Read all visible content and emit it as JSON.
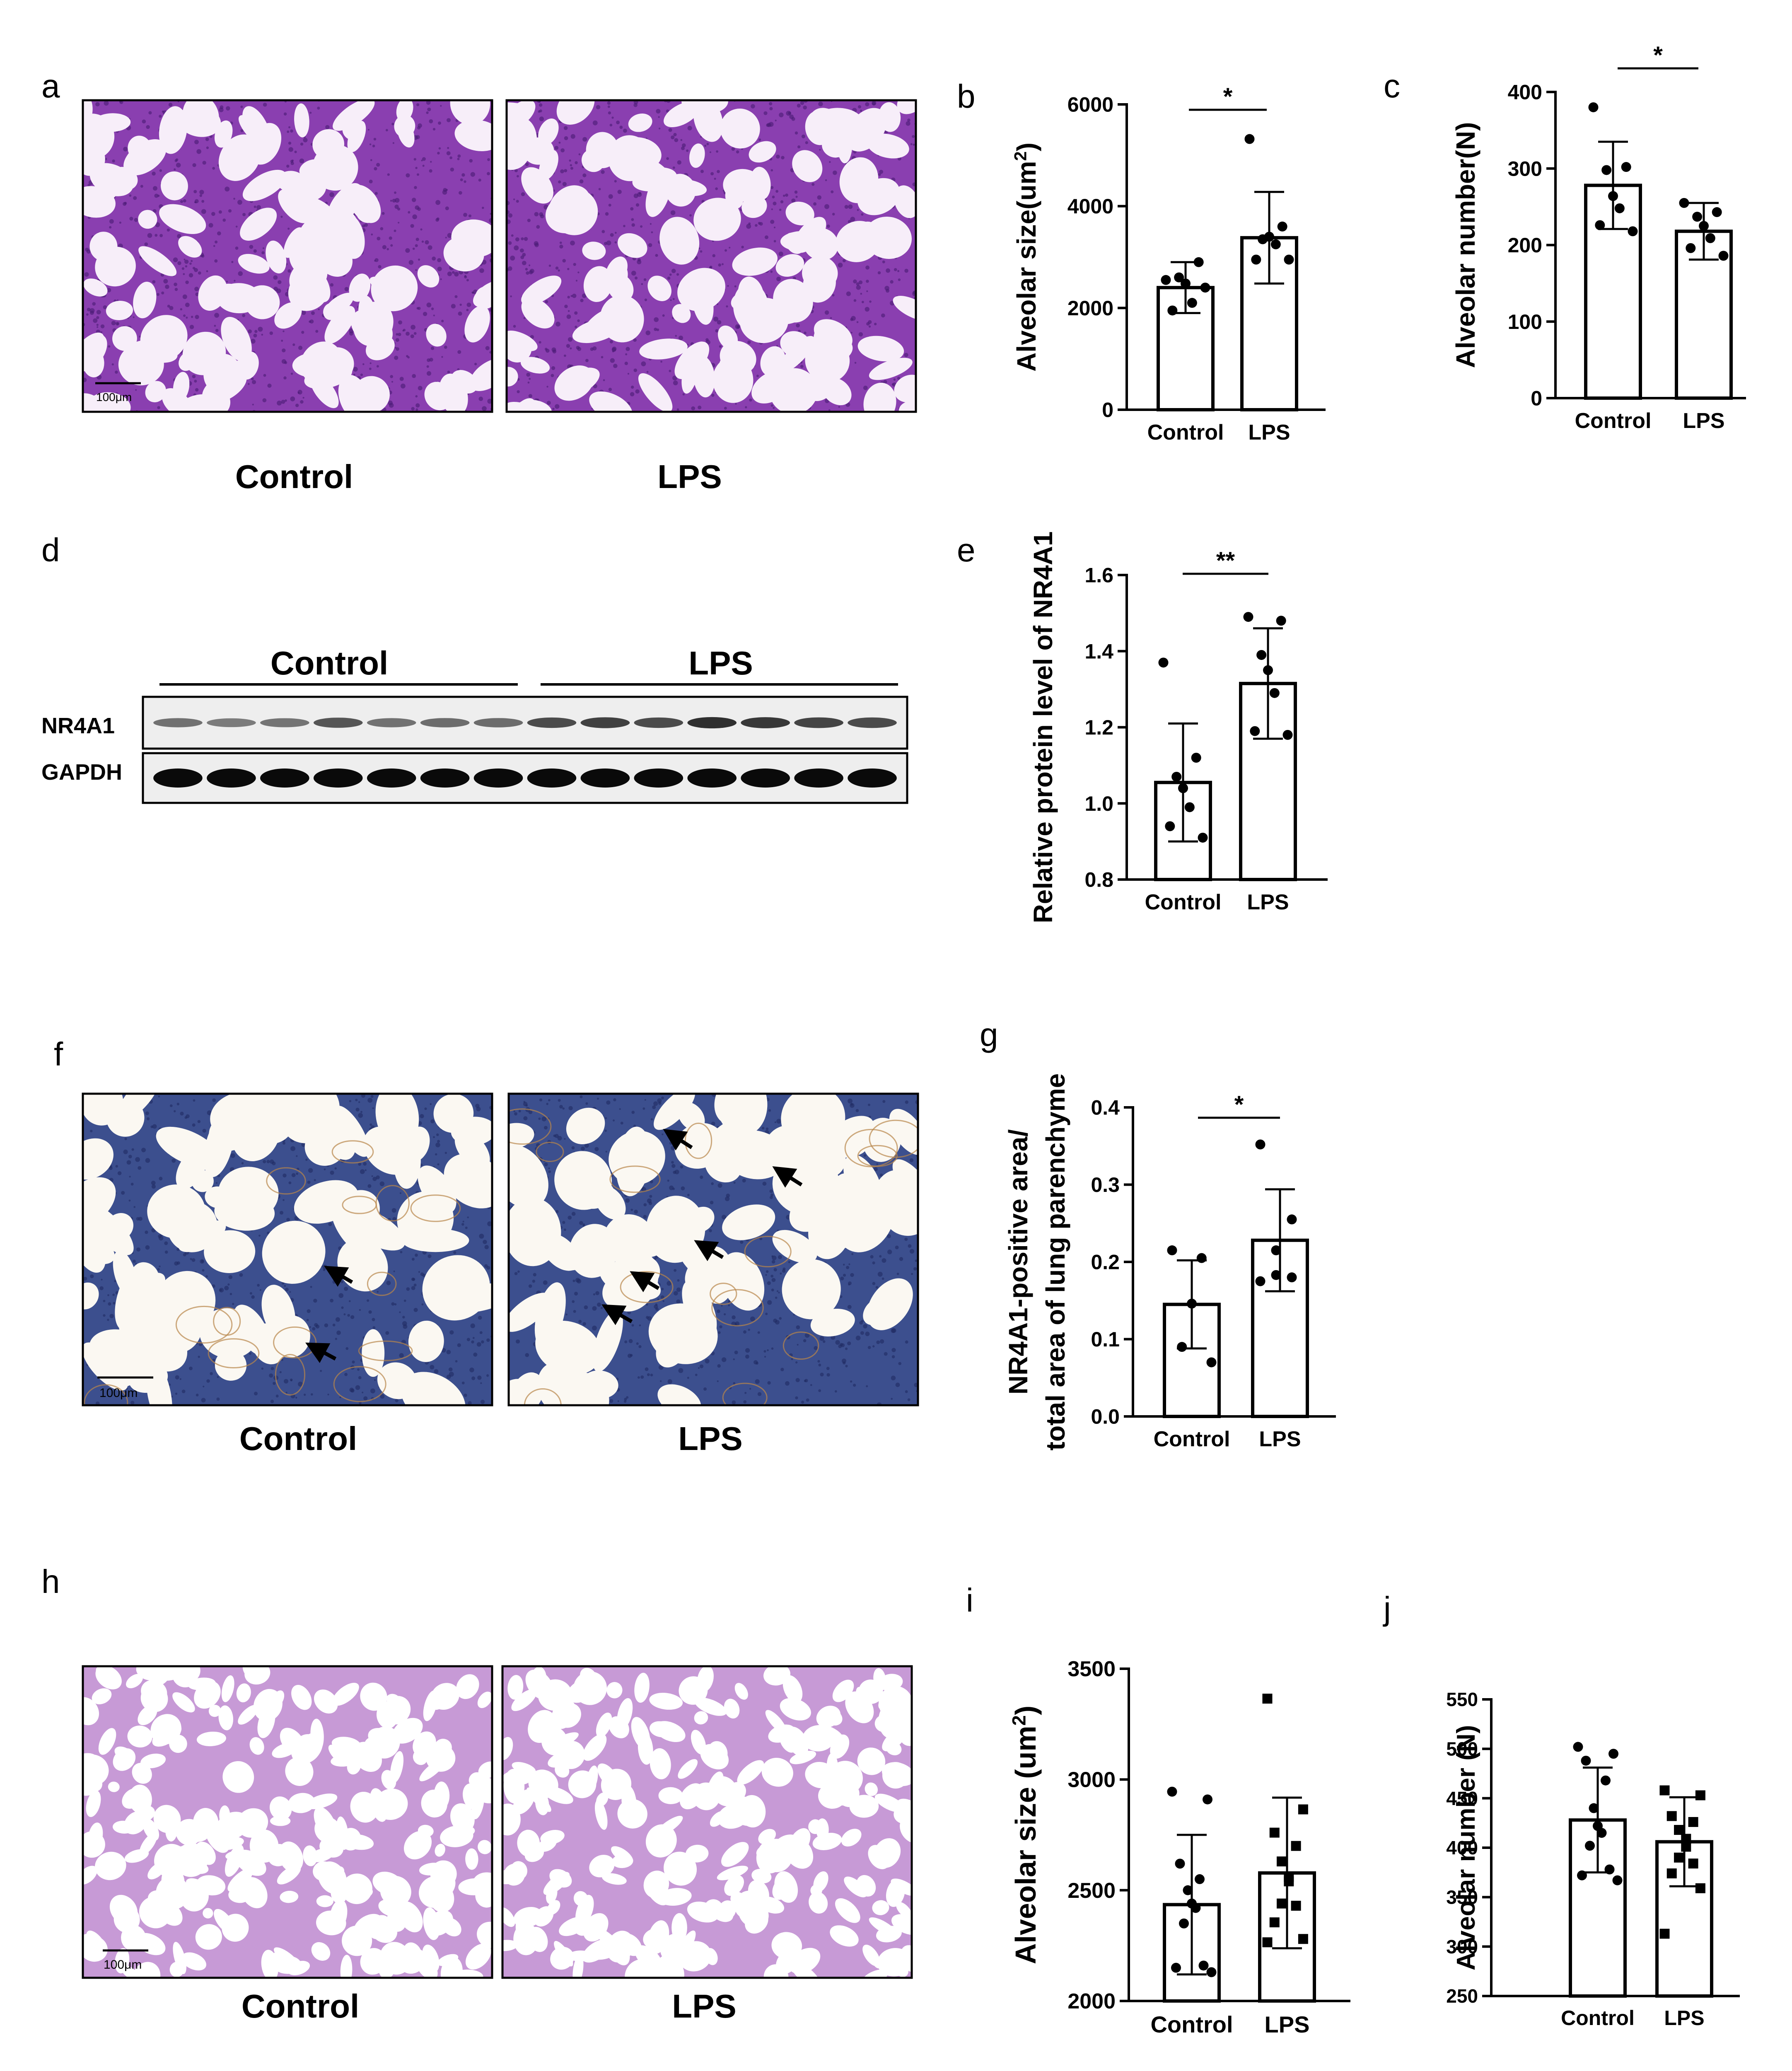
{
  "figure": {
    "panels": {
      "a": {
        "letter": "a",
        "images": [
          {
            "caption": "Control",
            "stain": "H&E",
            "scale_bar": "100μm",
            "tissue_color": "#8a3fb0",
            "background_color": "#f7eef9"
          },
          {
            "caption": "LPS",
            "stain": "H&E",
            "tissue_color": "#8a3fb0",
            "background_color": "#f7eef9"
          }
        ]
      },
      "d": {
        "letter": "d",
        "groups": [
          "Control",
          "LPS"
        ],
        "rows": [
          "NR4A1",
          "GAPDH"
        ],
        "lanes_per_group": 7
      },
      "f": {
        "letter": "f",
        "images": [
          {
            "caption": "Control",
            "stain": "IHC",
            "scale_bar": "100μm",
            "tissue_color": "#3c4f8e",
            "background_color": "#fbf8f2"
          },
          {
            "caption": "LPS",
            "stain": "IHC",
            "tissue_color": "#3c4f8e",
            "background_color": "#fbf8f2"
          }
        ]
      },
      "h": {
        "letter": "h",
        "images": [
          {
            "caption": "Control",
            "stain": "H&E",
            "scale_bar": "100μm",
            "tissue_color": "#c79ad6",
            "background_color": "#ffffff"
          },
          {
            "caption": "LPS",
            "stain": "H&E",
            "tissue_color": "#c79ad6",
            "background_color": "#ffffff"
          }
        ]
      }
    }
  },
  "chart_data": [
    {
      "panel": "b",
      "type": "bar",
      "categories": [
        "Control",
        "LPS"
      ],
      "values": [
        2400,
        3380
      ],
      "errors": [
        500,
        900
      ],
      "points": [
        [
          2550,
          2900,
          2600,
          2480,
          2100,
          1950,
          2400
        ],
        [
          5320,
          3600,
          3350,
          3400,
          3250,
          2950,
          2950
        ]
      ],
      "marker": "circle",
      "ylabel_main": "Alveolar size(um",
      "ylabel_sup": "2",
      "ylabel_end": ")",
      "ylim": [
        0,
        6000
      ],
      "yticks": [
        "0",
        "2000",
        "4000",
        "6000"
      ],
      "significance": "*"
    },
    {
      "panel": "c",
      "type": "bar",
      "categories": [
        "Control",
        "LPS"
      ],
      "values": [
        278,
        218
      ],
      "errors": [
        57,
        37
      ],
      "points": [
        [
          380,
          302,
          298,
          264,
          248,
          226,
          218
        ],
        [
          255,
          243,
          237,
          225,
          209,
          196,
          186
        ]
      ],
      "marker": "circle",
      "ylabel": "Alveolar number(N)",
      "ylim": [
        0,
        400
      ],
      "yticks": [
        "0",
        "100",
        "200",
        "300",
        "400"
      ],
      "significance": "*"
    },
    {
      "panel": "e",
      "type": "bar",
      "categories": [
        "Control",
        "LPS"
      ],
      "values": [
        1.055,
        1.315
      ],
      "errors": [
        0.155,
        0.145
      ],
      "points": [
        [
          1.37,
          1.12,
          1.07,
          1.04,
          0.99,
          0.94,
          0.91
        ],
        [
          1.49,
          1.48,
          1.39,
          1.35,
          1.29,
          1.19,
          1.18
        ]
      ],
      "marker": "circle",
      "ylabel": "Relative protein level of NR4A1",
      "ylim": [
        0.8,
        1.6
      ],
      "yticks": [
        "0.8",
        "1.0",
        "1.2",
        "1.4",
        "1.6"
      ],
      "significance": "**"
    },
    {
      "panel": "g",
      "type": "bar",
      "categories": [
        "Control",
        "LPS"
      ],
      "values": [
        0.145,
        0.228
      ],
      "errors": [
        0.057,
        0.066
      ],
      "points": [
        [
          0.215,
          0.205,
          0.146,
          0.09,
          0.07
        ],
        [
          0.352,
          0.255,
          0.215,
          0.183,
          0.18,
          0.175
        ]
      ],
      "marker": "circle",
      "ylabel_line1": "NR4A1-positive area/",
      "ylabel_line2": "total area of lung parenchyme",
      "ylim": [
        0,
        0.4
      ],
      "yticks": [
        "0.0",
        "0.1",
        "0.2",
        "0.3",
        "0.4"
      ],
      "significance": "*"
    },
    {
      "panel": "i",
      "type": "bar",
      "categories": [
        "Control",
        "LPS"
      ],
      "values": [
        2435,
        2578
      ],
      "errors": [
        315,
        340
      ],
      "points": [
        [
          2945,
          2910,
          2620,
          2550,
          2500,
          2440,
          2420,
          2350,
          2160,
          2150,
          2130
        ],
        [
          3365,
          2865,
          2760,
          2700,
          2630,
          2560,
          2540,
          2440,
          2430,
          2355,
          2280,
          2265
        ]
      ],
      "marker": [
        "circle",
        "square"
      ],
      "ylabel_main": "Alveolar size (um",
      "ylabel_sup": "2",
      "ylabel_end": ")",
      "ylim": [
        2000,
        3500
      ],
      "yticks": [
        "2000",
        "2500",
        "3000",
        "3500"
      ]
    },
    {
      "panel": "j",
      "type": "bar",
      "categories": [
        "Control",
        "LPS"
      ],
      "values": [
        428,
        406
      ],
      "errors": [
        53,
        45
      ],
      "points": [
        [
          502,
          495,
          488,
          468,
          440,
          422,
          415,
          402,
          378,
          372,
          367
        ],
        [
          458,
          453,
          432,
          426,
          418,
          409,
          401,
          390,
          384,
          374,
          359,
          313
        ]
      ],
      "marker": [
        "circle",
        "square"
      ],
      "ylabel": "Alveolar number (N)",
      "ylim": [
        250,
        550
      ],
      "yticks": [
        "250",
        "300",
        "350",
        "400",
        "450",
        "500",
        "550"
      ]
    }
  ]
}
